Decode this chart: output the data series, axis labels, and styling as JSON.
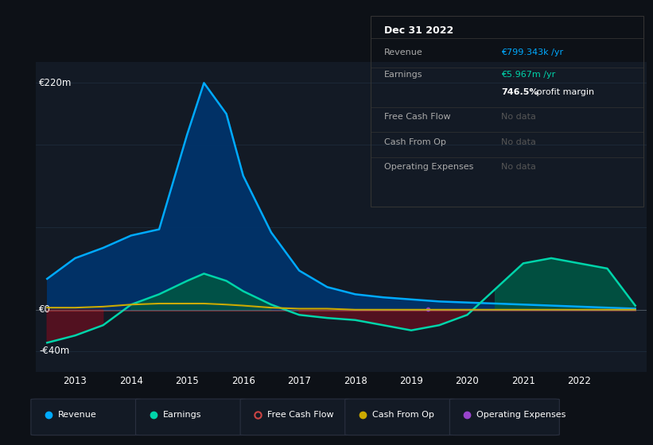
{
  "bg_color": "#0d1117",
  "chart_bg": "#131a25",
  "grid_color": "#1e2d3d",
  "ylabel_220": "€220m",
  "ylabel_0": "€0",
  "ylabel_neg40": "-€40m",
  "x_years": [
    2012.5,
    2013,
    2013.5,
    2014,
    2014.5,
    2015,
    2015.3,
    2015.7,
    2016,
    2016.5,
    2017,
    2017.5,
    2018,
    2018.5,
    2019,
    2019.5,
    2020,
    2020.5,
    2021,
    2021.5,
    2022,
    2022.5,
    2023
  ],
  "revenue": [
    30,
    50,
    60,
    72,
    78,
    170,
    220,
    190,
    130,
    75,
    38,
    22,
    15,
    12,
    10,
    8,
    7,
    6,
    5,
    4,
    3,
    2,
    1
  ],
  "earnings": [
    -32,
    -25,
    -15,
    5,
    15,
    28,
    35,
    28,
    18,
    5,
    -5,
    -8,
    -10,
    -15,
    -20,
    -15,
    -5,
    20,
    45,
    50,
    45,
    40,
    4
  ],
  "cash_from_op": [
    2,
    2,
    3,
    5,
    6,
    6,
    6,
    5,
    4,
    2,
    1,
    1,
    0,
    0,
    0,
    0,
    0,
    0,
    0,
    0,
    0,
    0,
    0
  ],
  "revenue_color": "#00aaff",
  "revenue_fill": "#00336a",
  "earnings_color": "#00d4aa",
  "earnings_fill_pos": "#005544",
  "earnings_fill_neg": "#5a1020",
  "cash_from_op_color": "#ccaa00",
  "free_cash_flow_color": "#cc4444",
  "operating_expenses_color": "#9944cc",
  "x_ticks": [
    2013,
    2014,
    2015,
    2016,
    2017,
    2018,
    2019,
    2020,
    2021,
    2022
  ],
  "ylim_min": -60,
  "ylim_max": 240,
  "xlim_min": 2012.3,
  "xlim_max": 2023.2,
  "infobox_title": "Dec 31 2022",
  "infobox_rows": [
    {
      "label": "Revenue",
      "value": "€799.343k /yr",
      "value_color": "#00aaff",
      "sep_below": true
    },
    {
      "label": "Earnings",
      "value": "€5.967m /yr",
      "value_color": "#00d4aa",
      "sep_below": false
    },
    {
      "label": "",
      "value": "746.5% profit margin",
      "value_color": "#ffffff",
      "sep_below": true,
      "bold_prefix": "746.5%"
    },
    {
      "label": "Free Cash Flow",
      "value": "No data",
      "value_color": "#555555",
      "sep_below": true
    },
    {
      "label": "Cash From Op",
      "value": "No data",
      "value_color": "#555555",
      "sep_below": true
    },
    {
      "label": "Operating Expenses",
      "value": "No data",
      "value_color": "#555555",
      "sep_below": false
    }
  ],
  "legend_items": [
    {
      "label": "Revenue",
      "color": "#00aaff",
      "filled": true
    },
    {
      "label": "Earnings",
      "color": "#00d4aa",
      "filled": true
    },
    {
      "label": "Free Cash Flow",
      "color": "#cc4444",
      "filled": false
    },
    {
      "label": "Cash From Op",
      "color": "#ccaa00",
      "filled": true
    },
    {
      "label": "Operating Expenses",
      "color": "#9944cc",
      "filled": true
    }
  ]
}
